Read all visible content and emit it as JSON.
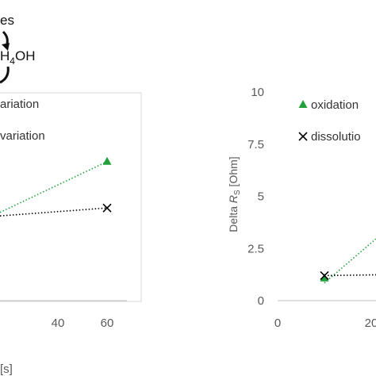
{
  "annotations": {
    "top_text": "es",
    "chem_prefix": "H",
    "chem_sub": "4",
    "chem_suffix": "OH"
  },
  "chart_data": [
    {
      "type": "scatter",
      "panel": "left (cropped)",
      "xlabel_visible": "[s]",
      "x_ticks": [
        "40",
        "60"
      ],
      "legend": {
        "placement": "top-right",
        "entries": [
          "ariation",
          "variation"
        ]
      },
      "series": [
        {
          "name": "ariation",
          "color": "#22a03a",
          "marker": "triangle",
          "line": "dotted",
          "points": [
            [
              60,
              6.9
            ]
          ]
        },
        {
          "name": "variation",
          "color": "#000000",
          "marker": "x",
          "line": "dotted",
          "points": [
            [
              60,
              4.6
            ]
          ]
        }
      ],
      "grid": false
    },
    {
      "type": "scatter",
      "panel": "right (cropped)",
      "ylabel_prefix": "Delta ",
      "ylabel_var": "R",
      "ylabel_sub": "S",
      "ylabel_unit": " [Ohm]",
      "y_ticks": [
        "0",
        "2.5",
        "5",
        "7.5",
        "10"
      ],
      "x_ticks": [
        "0",
        "20"
      ],
      "ylim": [
        0,
        10
      ],
      "legend": {
        "placement": "top-left",
        "entries": [
          "oxidation",
          "dissolutio"
        ]
      },
      "series": [
        {
          "name": "oxidation",
          "color": "#22a03a",
          "marker": "triangle",
          "line": "dotted",
          "points": [
            [
              10,
              1.15
            ]
          ]
        },
        {
          "name": "dissolutio",
          "color": "#000000",
          "marker": "x",
          "line": "dotted",
          "points": [
            [
              10,
              1.2
            ]
          ]
        }
      ],
      "grid": false
    }
  ]
}
